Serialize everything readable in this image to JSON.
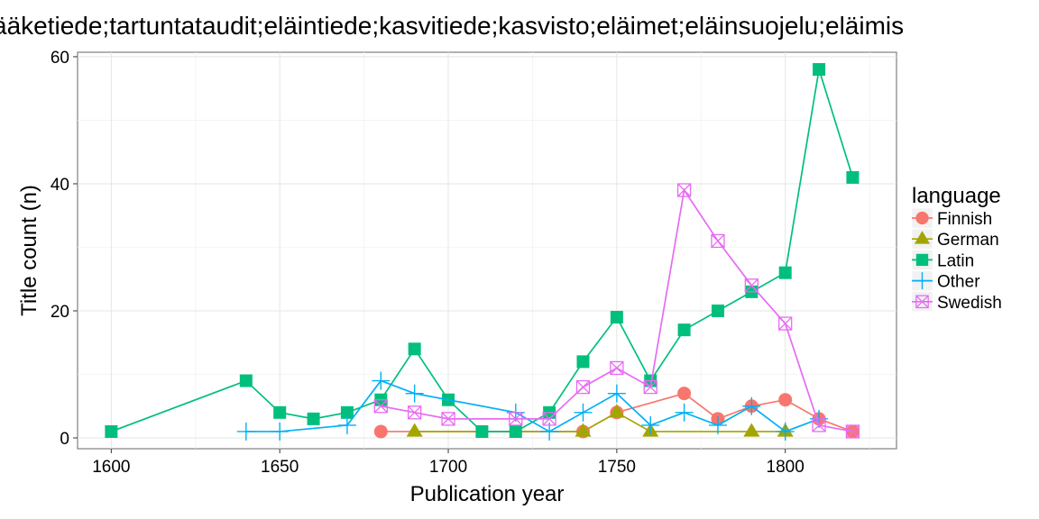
{
  "chart_data": {
    "type": "line",
    "title": "ääketiede;tartuntataudit;eläintiede;kasvitiede;kasvisto;eläimet;eläinsuojelu;eläimis",
    "xlabel": "Publication year",
    "ylabel": "Title count (n)",
    "xlim": [
      1590,
      1833
    ],
    "ylim": [
      -1.7,
      60.7
    ],
    "xticks": [
      1600,
      1650,
      1700,
      1750,
      1800
    ],
    "yticks": [
      0,
      20,
      40,
      60
    ],
    "grid": true,
    "legend": {
      "title": "language",
      "position": "right"
    },
    "series": [
      {
        "name": "Finnish",
        "color": "#F8766D",
        "marker": "circle",
        "points": [
          [
            1680,
            1
          ],
          [
            1740,
            1
          ],
          [
            1750,
            4
          ],
          [
            1770,
            7
          ],
          [
            1780,
            3
          ],
          [
            1790,
            5
          ],
          [
            1800,
            6
          ],
          [
            1810,
            3
          ],
          [
            1820,
            1
          ]
        ]
      },
      {
        "name": "German",
        "color": "#A3A500",
        "marker": "triangle",
        "points": [
          [
            1690,
            1
          ],
          [
            1740,
            1
          ],
          [
            1750,
            4
          ],
          [
            1760,
            1
          ],
          [
            1790,
            1
          ],
          [
            1800,
            1
          ]
        ]
      },
      {
        "name": "Latin",
        "color": "#00BF7D",
        "marker": "square",
        "points": [
          [
            1600,
            1
          ],
          [
            1640,
            9
          ],
          [
            1650,
            4
          ],
          [
            1660,
            3
          ],
          [
            1670,
            4
          ],
          [
            1680,
            6
          ],
          [
            1690,
            14
          ],
          [
            1700,
            6
          ],
          [
            1710,
            1
          ],
          [
            1720,
            1
          ],
          [
            1730,
            4
          ],
          [
            1740,
            12
          ],
          [
            1750,
            19
          ],
          [
            1760,
            9
          ],
          [
            1770,
            17
          ],
          [
            1780,
            20
          ],
          [
            1790,
            23
          ],
          [
            1800,
            26
          ],
          [
            1810,
            58
          ],
          [
            1820,
            41
          ]
        ]
      },
      {
        "name": "Other",
        "color": "#00B0F6",
        "marker": "plus",
        "points": [
          [
            1640,
            1
          ],
          [
            1650,
            1
          ],
          [
            1670,
            2
          ],
          [
            1680,
            9
          ],
          [
            1690,
            7
          ],
          [
            1720,
            4
          ],
          [
            1730,
            1
          ],
          [
            1740,
            4
          ],
          [
            1750,
            7
          ],
          [
            1760,
            2
          ],
          [
            1770,
            4
          ],
          [
            1780,
            2
          ],
          [
            1790,
            5
          ],
          [
            1800,
            1
          ],
          [
            1810,
            3
          ]
        ]
      },
      {
        "name": "Swedish",
        "color": "#E76BF3",
        "marker": "boxx",
        "points": [
          [
            1680,
            5
          ],
          [
            1690,
            4
          ],
          [
            1700,
            3
          ],
          [
            1720,
            3
          ],
          [
            1730,
            3
          ],
          [
            1740,
            8
          ],
          [
            1750,
            11
          ],
          [
            1760,
            8
          ],
          [
            1770,
            39
          ],
          [
            1780,
            31
          ],
          [
            1790,
            24
          ],
          [
            1800,
            18
          ],
          [
            1810,
            2
          ],
          [
            1820,
            1
          ]
        ]
      }
    ]
  }
}
